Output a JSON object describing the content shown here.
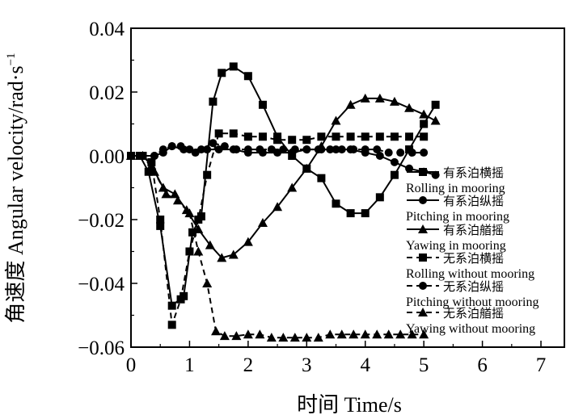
{
  "chart_data": {
    "type": "line",
    "xlabel": "时间 Time/s",
    "ylabel": "角速度 Angular velocity/rad·s",
    "ylabel_sup": "−1",
    "xlim": [
      0,
      7.4
    ],
    "ylim": [
      -0.06,
      0.04
    ],
    "x_ticks": [
      0,
      1,
      2,
      3,
      4,
      5,
      6,
      7
    ],
    "x_tick_labels": [
      "0",
      "1",
      "2",
      "3",
      "4",
      "5",
      "6",
      "7"
    ],
    "y_ticks": [
      0.04,
      0.02,
      0.0,
      -0.02,
      -0.04,
      -0.06
    ],
    "y_tick_labels": [
      "0.04",
      "0.02",
      "0.00",
      "−0.02",
      "−0.04",
      "−0.06"
    ],
    "grid": false,
    "legend_position": "right",
    "series": [
      {
        "name": "有系泊横摇",
        "name_en": "Rolling in mooring",
        "marker": "square",
        "dash": "solid",
        "x": [
          0.0,
          0.15,
          0.3,
          0.5,
          0.7,
          0.9,
          1.05,
          1.2,
          1.4,
          1.55,
          1.75,
          2.0,
          2.25,
          2.5,
          2.75,
          3.0,
          3.25,
          3.5,
          3.75,
          4.0,
          4.25,
          4.5,
          4.75,
          5.0,
          5.2
        ],
        "y": [
          0.0,
          0.0,
          -0.005,
          -0.022,
          -0.047,
          -0.044,
          -0.024,
          -0.019,
          0.017,
          0.026,
          0.028,
          0.025,
          0.016,
          0.006,
          0.0,
          -0.004,
          -0.007,
          -0.015,
          -0.018,
          -0.018,
          -0.013,
          -0.006,
          0.002,
          0.01,
          0.016
        ]
      },
      {
        "name": "有系泊纵摇",
        "name_en": "Pitching in mooring",
        "marker": "circle",
        "dash": "solid",
        "x": [
          0.0,
          0.2,
          0.4,
          0.55,
          0.7,
          0.9,
          1.1,
          1.3,
          1.5,
          1.75,
          2.0,
          2.25,
          2.5,
          2.75,
          3.0,
          3.25,
          3.5,
          3.75,
          4.0,
          4.25,
          4.5,
          4.75,
          5.0,
          5.2
        ],
        "y": [
          0.0,
          0.0,
          0.0,
          0.001,
          0.003,
          0.002,
          0.001,
          0.002,
          0.002,
          0.002,
          0.001,
          0.001,
          0.001,
          0.001,
          0.002,
          0.002,
          0.002,
          0.002,
          0.001,
          0.0,
          -0.002,
          -0.004,
          -0.005,
          -0.006
        ]
      },
      {
        "name": "有系泊艏摇",
        "name_en": "Yawing in mooring",
        "marker": "triangle",
        "dash": "solid",
        "x": [
          0.0,
          0.2,
          0.35,
          0.55,
          0.75,
          0.95,
          1.15,
          1.35,
          1.55,
          1.75,
          2.0,
          2.25,
          2.5,
          2.75,
          3.0,
          3.25,
          3.5,
          3.75,
          4.0,
          4.25,
          4.5,
          4.75,
          5.0,
          5.2
        ],
        "y": [
          0.0,
          0.0,
          -0.003,
          -0.01,
          -0.012,
          -0.017,
          -0.023,
          -0.028,
          -0.032,
          -0.031,
          -0.027,
          -0.021,
          -0.016,
          -0.01,
          -0.004,
          0.003,
          0.011,
          0.016,
          0.018,
          0.018,
          0.017,
          0.015,
          0.013,
          0.011
        ]
      },
      {
        "name": "无系泊横摇",
        "name_en": "Rolling without mooring",
        "marker": "square",
        "dash": "dashed",
        "x": [
          0.0,
          0.2,
          0.35,
          0.5,
          0.7,
          0.85,
          1.0,
          1.15,
          1.3,
          1.5,
          1.75,
          2.0,
          2.25,
          2.5,
          2.75,
          3.0,
          3.25,
          3.5,
          3.75,
          4.0,
          4.25,
          4.5,
          4.75,
          5.0
        ],
        "y": [
          0.0,
          0.0,
          -0.002,
          -0.02,
          -0.053,
          -0.045,
          -0.03,
          -0.02,
          -0.006,
          0.007,
          0.007,
          0.006,
          0.006,
          0.005,
          0.005,
          0.005,
          0.006,
          0.006,
          0.006,
          0.006,
          0.006,
          0.006,
          0.006,
          0.006
        ]
      },
      {
        "name": "无系泊纵摇",
        "name_en": "Pitching without mooring",
        "marker": "circle",
        "dash": "dashed",
        "x": [
          0.0,
          0.2,
          0.4,
          0.55,
          0.7,
          0.85,
          1.0,
          1.2,
          1.4,
          1.6,
          1.8,
          2.0,
          2.2,
          2.4,
          2.6,
          2.8,
          3.0,
          3.2,
          3.4,
          3.6,
          3.8,
          4.0,
          4.2,
          4.4,
          4.6,
          4.8,
          5.0
        ],
        "y": [
          0.0,
          0.0,
          0.0,
          0.002,
          0.003,
          0.003,
          0.002,
          0.002,
          0.004,
          0.003,
          0.002,
          0.002,
          0.002,
          0.002,
          0.002,
          0.002,
          0.002,
          0.002,
          0.002,
          0.002,
          0.002,
          0.002,
          0.002,
          0.001,
          0.001,
          0.001,
          0.001
        ]
      },
      {
        "name": "无系泊艏摇",
        "name_en": "Yawing without mooring",
        "marker": "triangle",
        "dash": "dashed",
        "x": [
          0.0,
          0.2,
          0.4,
          0.6,
          0.8,
          1.0,
          1.15,
          1.3,
          1.45,
          1.6,
          1.8,
          2.0,
          2.2,
          2.4,
          2.6,
          2.8,
          3.0,
          3.2,
          3.4,
          3.6,
          3.8,
          4.0,
          4.2,
          4.4,
          4.6,
          4.8,
          5.0
        ],
        "y": [
          0.0,
          0.0,
          -0.005,
          -0.012,
          -0.014,
          -0.018,
          -0.03,
          -0.04,
          -0.055,
          -0.0565,
          -0.0565,
          -0.056,
          -0.056,
          -0.057,
          -0.057,
          -0.057,
          -0.057,
          -0.057,
          -0.056,
          -0.056,
          -0.056,
          -0.056,
          -0.056,
          -0.056,
          -0.056,
          -0.056,
          -0.056
        ]
      }
    ]
  }
}
